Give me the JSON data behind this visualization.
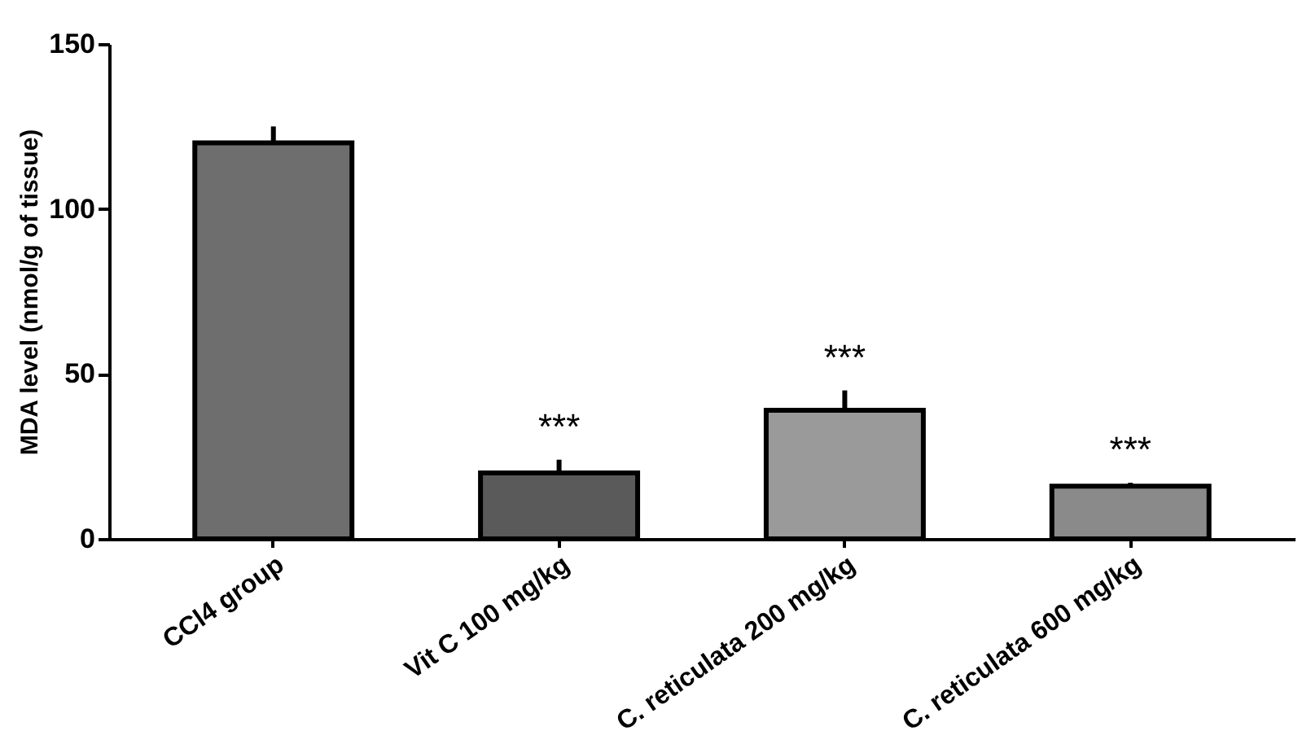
{
  "chart_data": {
    "type": "bar",
    "ylabel": "MDA level (nmol/g of tissue)",
    "categories": [
      "CCl4 group",
      "Vit C 100 mg/kg",
      "C. reticulata 200 mg/kg",
      "C. reticulata 600 mg/kg"
    ],
    "values": [
      120,
      20,
      39,
      16
    ],
    "errors": [
      [
        120,
        125
      ],
      [
        20,
        24
      ],
      [
        39,
        45
      ],
      [
        16,
        17
      ]
    ],
    "colors": [
      "#6e6e6e",
      "#5a5a5a",
      "#9a9a9a",
      "#8a8a8a"
    ],
    "ylim": [
      0,
      150
    ],
    "yticks": [
      0,
      50,
      100,
      150
    ],
    "grid": false,
    "annotations": [
      {
        "text": "***",
        "x": "Vit C 100 mg/kg",
        "y": 24
      },
      {
        "text": "***",
        "x": "C. reticulata 200 mg/kg",
        "y": 45
      },
      {
        "text": "***",
        "x": "C. reticulata 600 mg/kg",
        "y": 17
      }
    ]
  }
}
